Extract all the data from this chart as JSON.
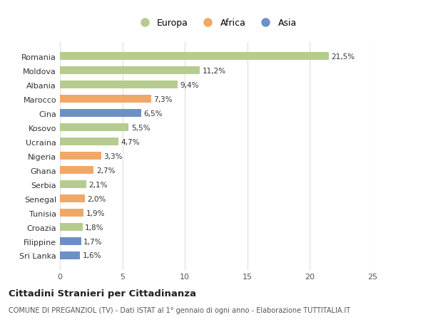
{
  "countries": [
    "Romania",
    "Moldova",
    "Albania",
    "Marocco",
    "Cina",
    "Kosovo",
    "Ucraina",
    "Nigeria",
    "Ghana",
    "Serbia",
    "Senegal",
    "Tunisia",
    "Croazia",
    "Filippine",
    "Sri Lanka"
  ],
  "values": [
    21.5,
    11.2,
    9.4,
    7.3,
    6.5,
    5.5,
    4.7,
    3.3,
    2.7,
    2.1,
    2.0,
    1.9,
    1.8,
    1.7,
    1.6
  ],
  "labels": [
    "21,5%",
    "11,2%",
    "9,4%",
    "7,3%",
    "6,5%",
    "5,5%",
    "4,7%",
    "3,3%",
    "2,7%",
    "2,1%",
    "2,0%",
    "1,9%",
    "1,8%",
    "1,7%",
    "1,6%"
  ],
  "categories": [
    "Europa",
    "Africa",
    "Asia"
  ],
  "bar_colors": [
    "#b5cc8e",
    "#b5cc8e",
    "#b5cc8e",
    "#f0a868",
    "#6d8fc7",
    "#b5cc8e",
    "#b5cc8e",
    "#f0a868",
    "#f0a868",
    "#b5cc8e",
    "#f0a868",
    "#f0a868",
    "#b5cc8e",
    "#6d8fc7",
    "#6d8fc7"
  ],
  "legend_colors": [
    "#b5cc8e",
    "#f0a868",
    "#6d8fc7"
  ],
  "title": "Cittadini Stranieri per Cittadinanza",
  "subtitle": "COMUNE DI PREGANZIOL (TV) - Dati ISTAT al 1° gennaio di ogni anno - Elaborazione TUTTITALIA.IT",
  "xlim": [
    0,
    25
  ],
  "xticks": [
    0,
    5,
    10,
    15,
    20,
    25
  ],
  "background_color": "#ffffff",
  "grid_color": "#dddddd"
}
